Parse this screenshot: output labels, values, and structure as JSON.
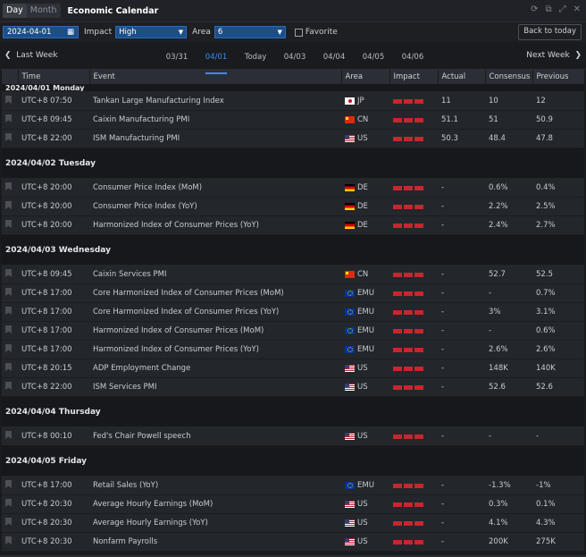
{
  "titlebar": {
    "seg_day": "Day",
    "seg_month": "Month",
    "title": "Economic Calendar"
  },
  "toolbar": {
    "date": "2024-04-01",
    "impact_label": "Impact",
    "impact_value": "High",
    "area_label": "Area",
    "area_value": "6",
    "favorite_label": "Favorite",
    "today_button": "Back to today"
  },
  "weeknav": {
    "last_week": "Last Week",
    "next_week": "Next Week",
    "days": [
      "03/31",
      "04/01",
      "Today",
      "04/03",
      "04/04",
      "04/05",
      "04/06"
    ],
    "active_day": "04/01"
  },
  "table": {
    "headers": [
      "Time",
      "Event",
      "Area",
      "Impact",
      "Actual",
      "Consensus",
      "Previous"
    ],
    "groups": [
      {
        "title": "2024/04/01 Monday",
        "rows": [
          {
            "time": "UTC+8 07:50",
            "event": "Tankan Large Manufacturing Index",
            "flag": "jp",
            "area": "JP",
            "actual": "11",
            "consensus": "10",
            "previous": "12"
          },
          {
            "time": "UTC+8 09:45",
            "event": "Caixin Manufacturing PMI",
            "flag": "cn",
            "area": "CN",
            "actual": "51.1",
            "consensus": "51",
            "previous": "50.9"
          },
          {
            "time": "UTC+8 22:00",
            "event": "ISM Manufacturing PMI",
            "flag": "us",
            "area": "US",
            "actual": "50.3",
            "consensus": "48.4",
            "previous": "47.8"
          }
        ]
      },
      {
        "title": "2024/04/02 Tuesday",
        "rows": [
          {
            "time": "UTC+8 20:00",
            "event": "Consumer Price Index (MoM)",
            "flag": "de",
            "area": "DE",
            "actual": "-",
            "consensus": "0.6%",
            "previous": "0.4%"
          },
          {
            "time": "UTC+8 20:00",
            "event": "Consumer Price Index (YoY)",
            "flag": "de",
            "area": "DE",
            "actual": "-",
            "consensus": "2.2%",
            "previous": "2.5%"
          },
          {
            "time": "UTC+8 20:00",
            "event": "Harmonized Index of Consumer Prices (YoY)",
            "flag": "de",
            "area": "DE",
            "actual": "-",
            "consensus": "2.4%",
            "previous": "2.7%"
          }
        ]
      },
      {
        "title": "2024/04/03 Wednesday",
        "rows": [
          {
            "time": "UTC+8 09:45",
            "event": "Caixin Services PMI",
            "flag": "cn",
            "area": "CN",
            "actual": "-",
            "consensus": "52.7",
            "previous": "52.5"
          },
          {
            "time": "UTC+8 17:00",
            "event": "Core Harmonized Index of Consumer Prices (MoM)",
            "flag": "eu",
            "area": "EMU",
            "actual": "-",
            "consensus": "-",
            "previous": "0.7%"
          },
          {
            "time": "UTC+8 17:00",
            "event": "Core Harmonized Index of Consumer Prices (YoY)",
            "flag": "eu",
            "area": "EMU",
            "actual": "-",
            "consensus": "3%",
            "previous": "3.1%"
          },
          {
            "time": "UTC+8 17:00",
            "event": "Harmonized Index of Consumer Prices (MoM)",
            "flag": "eu",
            "area": "EMU",
            "actual": "-",
            "consensus": "-",
            "previous": "0.6%"
          },
          {
            "time": "UTC+8 17:00",
            "event": "Harmonized Index of Consumer Prices (YoY)",
            "flag": "eu",
            "area": "EMU",
            "actual": "-",
            "consensus": "2.6%",
            "previous": "2.6%"
          },
          {
            "time": "UTC+8 20:15",
            "event": "ADP Employment Change",
            "flag": "us",
            "area": "US",
            "actual": "-",
            "consensus": "148K",
            "previous": "140K"
          },
          {
            "time": "UTC+8 22:00",
            "event": "ISM Services PMI",
            "flag": "us",
            "area": "US",
            "actual": "-",
            "consensus": "52.6",
            "previous": "52.6"
          }
        ]
      },
      {
        "title": "2024/04/04 Thursday",
        "rows": [
          {
            "time": "UTC+8 00:10",
            "event": "Fed's Chair Powell speech",
            "flag": "us",
            "area": "US",
            "actual": "-",
            "consensus": "-",
            "previous": "-"
          }
        ]
      },
      {
        "title": "2024/04/05 Friday",
        "rows": [
          {
            "time": "UTC+8 17:00",
            "event": "Retail Sales (YoY)",
            "flag": "eu",
            "area": "EMU",
            "actual": "-",
            "consensus": "-1.3%",
            "previous": "-1%"
          },
          {
            "time": "UTC+8 20:30",
            "event": "Average Hourly Earnings (MoM)",
            "flag": "us",
            "area": "US",
            "actual": "-",
            "consensus": "0.3%",
            "previous": "0.1%"
          },
          {
            "time": "UTC+8 20:30",
            "event": "Average Hourly Earnings (YoY)",
            "flag": "us",
            "area": "US",
            "actual": "-",
            "consensus": "4.1%",
            "previous": "4.3%"
          },
          {
            "time": "UTC+8 20:30",
            "event": "Nonfarm Payrolls",
            "flag": "us",
            "area": "US",
            "actual": "-",
            "consensus": "200K",
            "previous": "275K"
          }
        ]
      }
    ]
  },
  "colors": {
    "accent": "#3d8bef",
    "impact_high": "#c8262e",
    "date_field": "#1c4f8a"
  }
}
